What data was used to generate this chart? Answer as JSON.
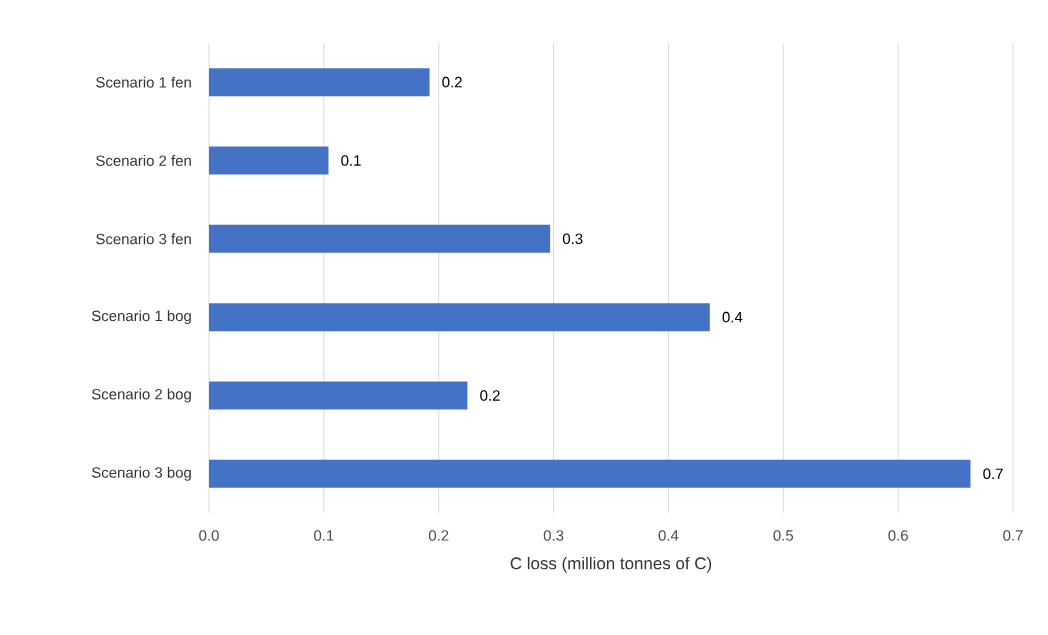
{
  "chart_data": {
    "type": "bar",
    "orientation": "horizontal",
    "xlabel": "C loss (million tonnes of C)",
    "categories": [
      "Scenario 1 fen",
      "Scenario 2 fen",
      "Scenario 3 fen",
      "Scenario 1 bog",
      "Scenario 2 bog",
      "Scenario 3 bog"
    ],
    "values": [
      0.192,
      0.104,
      0.297,
      0.436,
      0.225,
      0.663
    ],
    "value_labels": [
      "0.2",
      "0.1",
      "0.3",
      "0.4",
      "0.2",
      "0.7"
    ],
    "color": "#4472c4",
    "xlim": [
      0,
      0.7
    ],
    "xticks": [
      {
        "value": 0,
        "label": "0.0"
      },
      {
        "value": 0.1,
        "label": "0.1"
      },
      {
        "value": 0.2,
        "label": "0.2"
      },
      {
        "value": 0.3,
        "label": "0.3"
      },
      {
        "value": 0.4,
        "label": "0.4"
      },
      {
        "value": 0.5,
        "label": "0.5"
      },
      {
        "value": 0.6,
        "label": "0.6"
      },
      {
        "value": 0.7,
        "label": "0.7"
      }
    ],
    "grid": "x"
  }
}
